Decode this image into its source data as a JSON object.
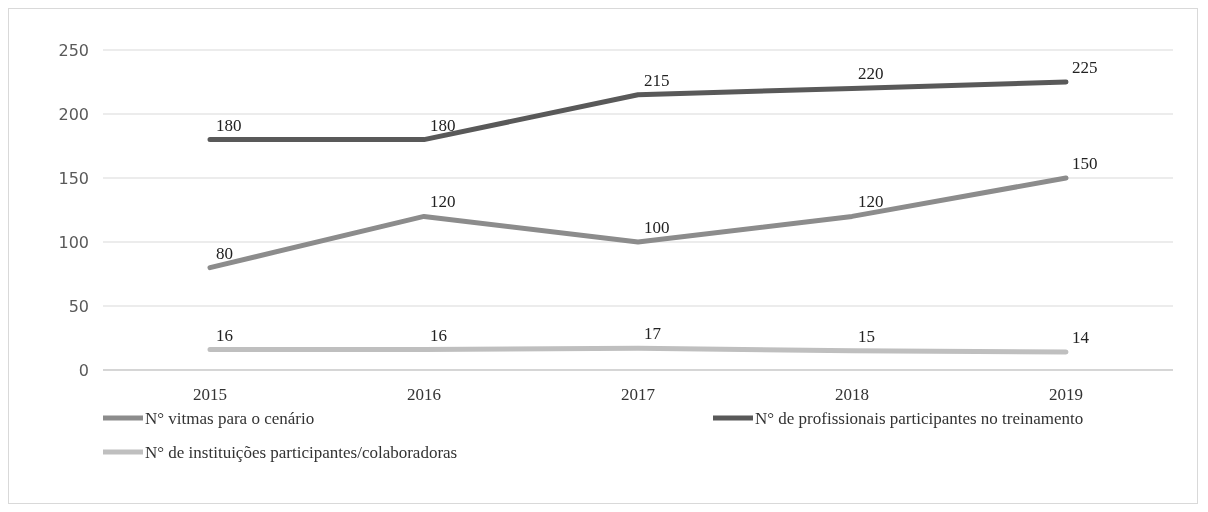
{
  "chart_data": {
    "type": "line",
    "categories": [
      "2015",
      "2016",
      "2017",
      "2018",
      "2019"
    ],
    "series": [
      {
        "name": "N° vitmas para o cenário",
        "color": "#8c8c8c",
        "values": [
          80,
          120,
          100,
          120,
          150
        ]
      },
      {
        "name": "N° de profissionais participantes no treinamento",
        "color": "#595959",
        "values": [
          180,
          180,
          215,
          220,
          225
        ]
      },
      {
        "name": "N° de instituições participantes/colaboradoras",
        "color": "#bfbfbf",
        "values": [
          16,
          16,
          17,
          15,
          14
        ]
      }
    ],
    "ylim": [
      0,
      250
    ],
    "yticks": [
      0,
      50,
      100,
      150,
      200,
      250
    ],
    "grid": "y",
    "legend": "bottom",
    "data_labels": true,
    "marker": "none",
    "line_style": "solid"
  }
}
